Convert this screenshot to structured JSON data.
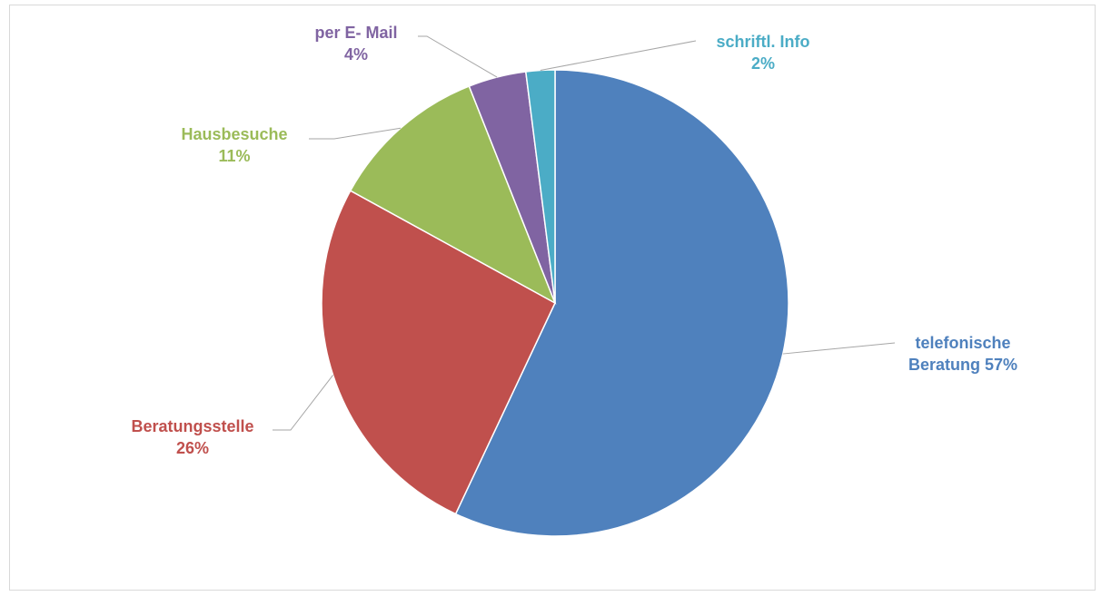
{
  "chart_data": {
    "type": "pie",
    "categories": [
      "telefonische Beratung",
      "Beratungsstelle",
      "Hausbesuche",
      "per E- Mail",
      "schriftl. Info"
    ],
    "values": [
      57,
      26,
      11,
      4,
      2
    ],
    "value_labels": [
      "57%",
      "26%",
      "11%",
      "4%",
      "2%"
    ],
    "colors": [
      "#4f81bd",
      "#c0504d",
      "#9bbb59",
      "#8064a2",
      "#4bacc6"
    ]
  }
}
